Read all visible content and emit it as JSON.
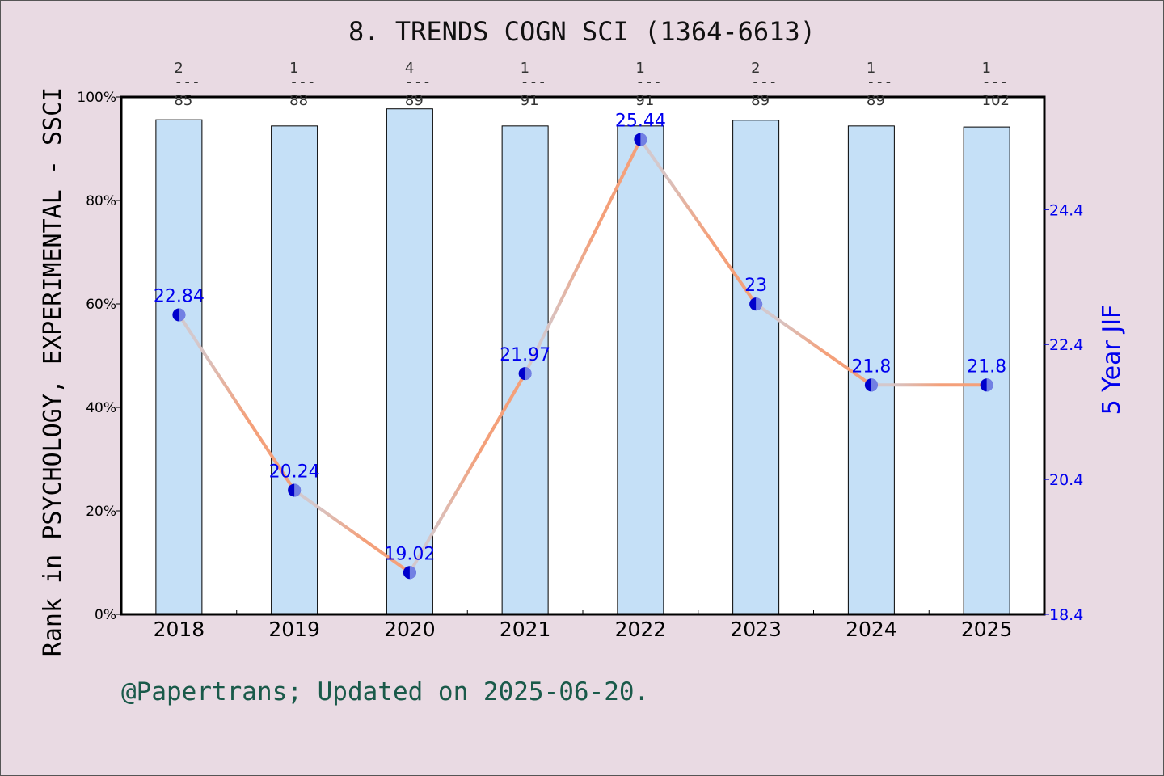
{
  "chart_data": {
    "type": "bar+line",
    "title": "8. TRENDS COGN SCI (1364-6613)",
    "categories": [
      "2018",
      "2019",
      "2020",
      "2021",
      "2022",
      "2023",
      "2024",
      "2025"
    ],
    "ylabel_left": "Rank in PSYCHOLOGY, EXPERIMENTAL - SSCI",
    "ylabel_right": "5 Year JIF",
    "ylim_left": [
      0,
      100
    ],
    "ylim_right": [
      18.4,
      26.07
    ],
    "left_ticks": [
      "0%",
      "20%",
      "40%",
      "60%",
      "80%",
      "100%"
    ],
    "right_ticks": [
      "18.4",
      "20.4",
      "22.4",
      "24.4"
    ],
    "bars": {
      "values_percent": [
        95.6,
        94.4,
        97.7,
        94.4,
        94.4,
        95.5,
        94.4,
        94.2
      ],
      "rank_labels": [
        {
          "rank": "2",
          "total": "85"
        },
        {
          "rank": "1",
          "total": "88"
        },
        {
          "rank": "4",
          "total": "89"
        },
        {
          "rank": "1",
          "total": "91"
        },
        {
          "rank": "1",
          "total": "91"
        },
        {
          "rank": "2",
          "total": "89"
        },
        {
          "rank": "1",
          "total": "89"
        },
        {
          "rank": "1",
          "total": "102"
        }
      ],
      "color": "#c5e0f7"
    },
    "line": {
      "values": [
        22.84,
        20.24,
        19.02,
        21.97,
        25.44,
        23,
        21.8,
        21.8
      ],
      "labels": [
        "22.84",
        "20.24",
        "19.02",
        "21.97",
        "25.44",
        "23",
        "21.8",
        "21.8"
      ],
      "color": "#f4a07a",
      "marker_color": "#0000cc",
      "label_color": "#0000ee"
    },
    "grid": false,
    "footer": "@Papertrans; Updated on 2025-06-20."
  }
}
